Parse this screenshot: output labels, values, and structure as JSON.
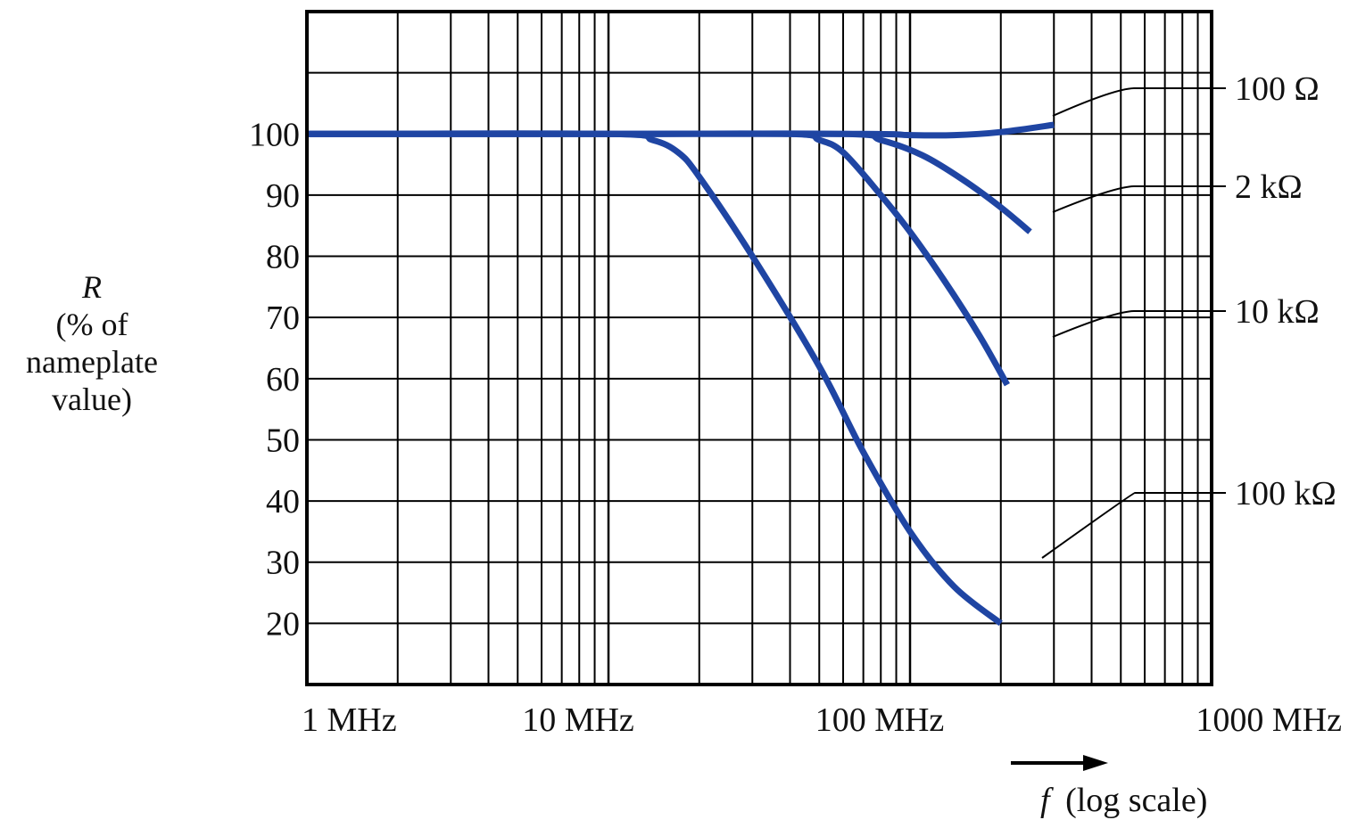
{
  "chart_data": {
    "type": "line",
    "title": "",
    "xlabel": {
      "symbol": "f",
      "text": "(log scale)"
    },
    "ylabel": {
      "symbol": "R",
      "lines": [
        "(% of",
        "nameplate",
        "value)"
      ]
    },
    "xscale": "log",
    "xlim": [
      1,
      1000
    ],
    "ylim": [
      10,
      120
    ],
    "x_ticks": [
      {
        "value": 1,
        "label": "1 MHz"
      },
      {
        "value": 10,
        "label": "10 MHz"
      },
      {
        "value": 100,
        "label": "100 MHz"
      },
      {
        "value": 1000,
        "label": "1000 MHz"
      }
    ],
    "y_ticks": [
      100,
      90,
      80,
      70,
      60,
      50,
      40,
      30,
      20
    ],
    "grid": true,
    "legend": "right",
    "line_color": "#1f45a3",
    "series": [
      {
        "name": "100 Ω",
        "x": [
          1,
          10,
          70,
          100,
          140,
          200,
          300
        ],
        "y": [
          100,
          100,
          100,
          99.8,
          99.8,
          100.3,
          101.5
        ]
      },
      {
        "name": "2 kΩ",
        "x": [
          1,
          10,
          60,
          80,
          110,
          150,
          200,
          250
        ],
        "y": [
          100,
          100,
          100,
          99,
          96.5,
          92.5,
          88,
          84
        ]
      },
      {
        "name": "10 kΩ",
        "x": [
          1,
          10,
          40,
          50,
          60,
          80,
          100,
          130,
          170,
          210
        ],
        "y": [
          100,
          100,
          100,
          99,
          97,
          90,
          84,
          76,
          67,
          59
        ]
      },
      {
        "name": "100 kΩ",
        "x": [
          1,
          10,
          14,
          17,
          20,
          30,
          50,
          70,
          100,
          140,
          200
        ],
        "y": [
          100,
          100,
          99,
          97,
          93,
          80,
          62,
          48,
          35,
          26,
          20
        ]
      }
    ]
  }
}
